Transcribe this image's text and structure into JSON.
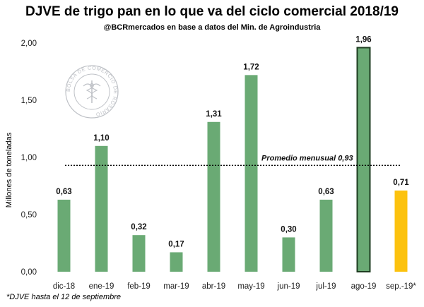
{
  "title": "DJVE de trigo pan en lo que va del ciclo comercial 2018/19",
  "subtitle": "@BCRmercados en base a datos del Min. de Agroindustria",
  "footnote": "*DJVE hasta el 12 de septiembre",
  "watermark": {
    "text": "BOLSA DE COMERCIO DE ROSARIO"
  },
  "colors": {
    "bar": "#6aaa74",
    "highlight": "#fcc20e",
    "outline": "#1f3d22"
  },
  "chart_data": {
    "type": "bar",
    "title": "DJVE de trigo pan en lo que va del ciclo comercial 2018/19",
    "ylabel": "Millones de toneladas",
    "xlabel": "",
    "categories": [
      "dic-18",
      "ene-19",
      "feb-19",
      "mar-19",
      "abr-19",
      "may-19",
      "jun-19",
      "jul-19",
      "ago-19",
      "sep.-19*"
    ],
    "values": [
      0.63,
      1.1,
      0.32,
      0.17,
      1.31,
      1.72,
      0.3,
      0.63,
      1.96,
      0.71
    ],
    "value_labels": [
      "0,63",
      "1,10",
      "0,32",
      "0,17",
      "1,31",
      "1,72",
      "0,30",
      "0,63",
      "1,96",
      "0,71"
    ],
    "bar_colors": [
      "#6aaa74",
      "#6aaa74",
      "#6aaa74",
      "#6aaa74",
      "#6aaa74",
      "#6aaa74",
      "#6aaa74",
      "#6aaa74",
      "#6aaa74",
      "#fcc20e"
    ],
    "outlined_index": 8,
    "ylim": [
      0,
      2
    ],
    "yticks": [
      0,
      0.5,
      1,
      1.5,
      2
    ],
    "ytick_labels": [
      "0,00",
      "0,50",
      "1,00",
      "1,50",
      "2,00"
    ],
    "average": {
      "value": 0.93,
      "label": "Promedio menusual 0,93"
    },
    "grid": false,
    "legend": "none"
  }
}
